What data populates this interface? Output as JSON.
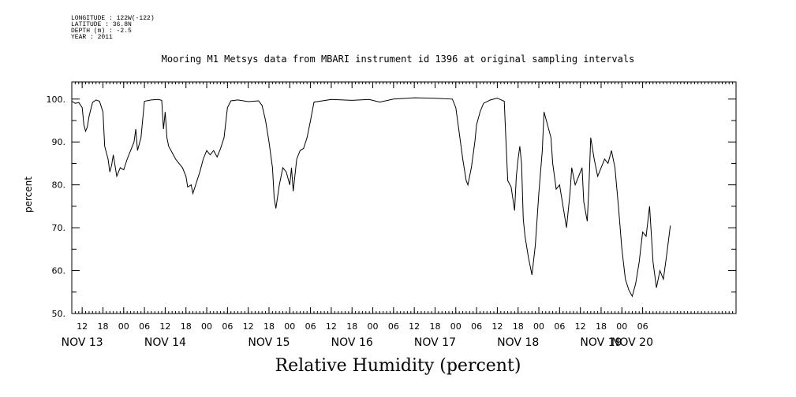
{
  "metadata": {
    "longitude": "LONGITUDE : 122W(-122)",
    "latitude": "LATITUDE : 36.8N",
    "depth": "DEPTH (m) : -2.5",
    "year": "YEAR : 2011"
  },
  "chart_data": {
    "type": "line",
    "title": "Mooring M1 Metsys data from MBARI instrument id 1396 at original sampling intervals",
    "xlabel": "Relative Humidity (percent)",
    "ylabel": "percent",
    "ylim": [
      50,
      104
    ],
    "xlim": [
      "2011-11-12T09:00",
      "2011-11-20T09:00"
    ],
    "grid": false,
    "y_ticks": [
      50,
      60,
      70,
      80,
      90,
      100
    ],
    "y_tick_labels": [
      "50.",
      "60.",
      "70.",
      "80.",
      "90.",
      "100."
    ],
    "hour_ticks": [
      {
        "t": "2011-11-12T12:00",
        "label": "12"
      },
      {
        "t": "2011-11-12T18:00",
        "label": "18"
      },
      {
        "t": "2011-11-13T00:00",
        "label": "00"
      },
      {
        "t": "2011-11-13T06:00",
        "label": "06"
      },
      {
        "t": "2011-11-13T12:00",
        "label": "12"
      },
      {
        "t": "2011-11-13T18:00",
        "label": "18"
      },
      {
        "t": "2011-11-14T00:00",
        "label": "00"
      },
      {
        "t": "2011-11-14T06:00",
        "label": "06"
      },
      {
        "t": "2011-11-14T12:00",
        "label": "12"
      },
      {
        "t": "2011-11-14T18:00",
        "label": "18"
      },
      {
        "t": "2011-11-15T00:00",
        "label": "00"
      },
      {
        "t": "2011-11-15T06:00",
        "label": "06"
      },
      {
        "t": "2011-11-15T12:00",
        "label": "12"
      },
      {
        "t": "2011-11-15T18:00",
        "label": "18"
      },
      {
        "t": "2011-11-16T00:00",
        "label": "00"
      },
      {
        "t": "2011-11-16T06:00",
        "label": "06"
      },
      {
        "t": "2011-11-16T12:00",
        "label": "12"
      },
      {
        "t": "2011-11-16T18:00",
        "label": "18"
      },
      {
        "t": "2011-11-17T00:00",
        "label": "00"
      },
      {
        "t": "2011-11-17T06:00",
        "label": "06"
      },
      {
        "t": "2011-11-17T12:00",
        "label": "12"
      },
      {
        "t": "2011-11-17T18:00",
        "label": "18"
      },
      {
        "t": "2011-11-18T00:00",
        "label": "00"
      },
      {
        "t": "2011-11-18T06:00",
        "label": "06"
      },
      {
        "t": "2011-11-18T12:00",
        "label": "12"
      },
      {
        "t": "2011-11-18T18:00",
        "label": "18"
      },
      {
        "t": "2011-11-19T00:00",
        "label": "00"
      },
      {
        "t": "2011-11-19T06:00",
        "label": "06"
      }
    ],
    "day_labels": [
      {
        "t": "2011-11-12T12:00",
        "label": "NOV 13"
      },
      {
        "t": "2011-11-13T12:00",
        "label": "NOV 14"
      },
      {
        "t": "2011-11-14T18:00",
        "label": "NOV 15"
      },
      {
        "t": "2011-11-15T18:00",
        "label": "NOV 16"
      },
      {
        "t": "2011-11-16T18:00",
        "label": "NOV 17"
      },
      {
        "t": "2011-11-17T18:00",
        "label": "NOV 18"
      },
      {
        "t": "2011-11-18T18:00",
        "label": "NOV 19"
      },
      {
        "t": "2011-11-19T03:00",
        "label": "NOV 20"
      }
    ],
    "series": [
      {
        "points": [
          [
            "2011-11-12T09:00",
            99.5
          ],
          [
            "2011-11-12T10:00",
            99.0
          ],
          [
            "2011-11-12T11:00",
            99.2
          ],
          [
            "2011-11-12T12:00",
            98.0
          ],
          [
            "2011-11-12T12:30",
            94.0
          ],
          [
            "2011-11-12T13:00",
            92.5
          ],
          [
            "2011-11-12T13:30",
            93.5
          ],
          [
            "2011-11-12T14:00",
            96.0
          ],
          [
            "2011-11-12T15:00",
            99.2
          ],
          [
            "2011-11-12T16:00",
            99.8
          ],
          [
            "2011-11-12T17:00",
            99.5
          ],
          [
            "2011-11-12T18:00",
            97.0
          ],
          [
            "2011-11-12T18:30",
            89.0
          ],
          [
            "2011-11-12T19:30",
            86.0
          ],
          [
            "2011-11-12T20:00",
            83.0
          ],
          [
            "2011-11-12T20:30",
            84.5
          ],
          [
            "2011-11-12T21:00",
            87.0
          ],
          [
            "2011-11-12T22:00",
            82.0
          ],
          [
            "2011-11-12T23:00",
            84.0
          ],
          [
            "2011-11-13T00:00",
            83.5
          ],
          [
            "2011-11-13T01:00",
            86.0
          ],
          [
            "2011-11-13T02:00",
            88.0
          ],
          [
            "2011-11-13T03:00",
            90.0
          ],
          [
            "2011-11-13T03:30",
            93.0
          ],
          [
            "2011-11-13T04:00",
            88.0
          ],
          [
            "2011-11-13T05:00",
            91.0
          ],
          [
            "2011-11-13T06:00",
            99.5
          ],
          [
            "2011-11-13T08:00",
            99.8
          ],
          [
            "2011-11-13T10:00",
            99.9
          ],
          [
            "2011-11-13T11:00",
            99.7
          ],
          [
            "2011-11-13T11:30",
            93.0
          ],
          [
            "2011-11-13T12:00",
            97.0
          ],
          [
            "2011-11-13T12:30",
            91.0
          ],
          [
            "2011-11-13T13:00",
            89.0
          ],
          [
            "2011-11-13T14:00",
            87.5
          ],
          [
            "2011-11-13T15:00",
            86.0
          ],
          [
            "2011-11-13T16:00",
            85.0
          ],
          [
            "2011-11-13T17:00",
            84.0
          ],
          [
            "2011-11-13T18:00",
            82.0
          ],
          [
            "2011-11-13T18:30",
            79.5
          ],
          [
            "2011-11-13T19:30",
            80.0
          ],
          [
            "2011-11-13T20:00",
            78.0
          ],
          [
            "2011-11-13T21:00",
            80.5
          ],
          [
            "2011-11-13T22:00",
            83.0
          ],
          [
            "2011-11-13T23:00",
            86.0
          ],
          [
            "2011-11-14T00:00",
            88.0
          ],
          [
            "2011-11-14T01:00",
            87.0
          ],
          [
            "2011-11-14T02:00",
            88.0
          ],
          [
            "2011-11-14T03:00",
            86.5
          ],
          [
            "2011-11-14T04:00",
            88.5
          ],
          [
            "2011-11-14T05:00",
            91.0
          ],
          [
            "2011-11-14T06:00",
            98.0
          ],
          [
            "2011-11-14T07:00",
            99.6
          ],
          [
            "2011-11-14T09:00",
            99.8
          ],
          [
            "2011-11-14T12:00",
            99.4
          ],
          [
            "2011-11-14T15:00",
            99.6
          ],
          [
            "2011-11-14T16:00",
            98.5
          ],
          [
            "2011-11-14T17:00",
            95.0
          ],
          [
            "2011-11-14T18:00",
            90.0
          ],
          [
            "2011-11-14T19:00",
            84.0
          ],
          [
            "2011-11-14T19:30",
            77.0
          ],
          [
            "2011-11-14T20:00",
            74.5
          ],
          [
            "2011-11-14T21:00",
            80.0
          ],
          [
            "2011-11-14T22:00",
            84.0
          ],
          [
            "2011-11-14T23:00",
            83.0
          ],
          [
            "2011-11-15T00:00",
            80.0
          ],
          [
            "2011-11-15T00:30",
            84.0
          ],
          [
            "2011-11-15T01:00",
            78.5
          ],
          [
            "2011-11-15T02:00",
            86.0
          ],
          [
            "2011-11-15T03:00",
            88.0
          ],
          [
            "2011-11-15T04:00",
            88.5
          ],
          [
            "2011-11-15T05:00",
            91.0
          ],
          [
            "2011-11-15T06:00",
            95.0
          ],
          [
            "2011-11-15T07:00",
            99.3
          ],
          [
            "2011-11-15T12:00",
            99.9
          ],
          [
            "2011-11-15T18:00",
            99.7
          ],
          [
            "2011-11-15T23:00",
            99.9
          ],
          [
            "2011-11-16T02:00",
            99.3
          ],
          [
            "2011-11-16T06:00",
            100.0
          ],
          [
            "2011-11-16T12:00",
            100.3
          ],
          [
            "2011-11-16T18:00",
            100.2
          ],
          [
            "2011-11-16T23:00",
            100.0
          ],
          [
            "2011-11-17T00:00",
            98.0
          ],
          [
            "2011-11-17T01:00",
            92.0
          ],
          [
            "2011-11-17T02:00",
            86.0
          ],
          [
            "2011-11-17T03:00",
            81.0
          ],
          [
            "2011-11-17T03:30",
            80.0
          ],
          [
            "2011-11-17T04:30",
            84.0
          ],
          [
            "2011-11-17T05:30",
            90.0
          ],
          [
            "2011-11-17T06:00",
            94.0
          ],
          [
            "2011-11-17T07:00",
            97.0
          ],
          [
            "2011-11-17T08:00",
            99.0
          ],
          [
            "2011-11-17T10:00",
            99.8
          ],
          [
            "2011-11-17T12:00",
            100.2
          ],
          [
            "2011-11-17T14:00",
            99.5
          ],
          [
            "2011-11-17T14:30",
            90.0
          ],
          [
            "2011-11-17T15:00",
            81.0
          ],
          [
            "2011-11-17T16:00",
            79.5
          ],
          [
            "2011-11-17T17:00",
            74.0
          ],
          [
            "2011-11-17T17:30",
            82.0
          ],
          [
            "2011-11-17T18:00",
            86.0
          ],
          [
            "2011-11-17T18:30",
            89.0
          ],
          [
            "2011-11-17T19:00",
            85.0
          ],
          [
            "2011-11-17T19:30",
            72.0
          ],
          [
            "2011-11-17T20:00",
            68.0
          ],
          [
            "2011-11-17T21:00",
            63.0
          ],
          [
            "2011-11-17T22:00",
            59.0
          ],
          [
            "2011-11-17T23:00",
            66.0
          ],
          [
            "2011-11-18T00:00",
            78.0
          ],
          [
            "2011-11-18T01:00",
            88.0
          ],
          [
            "2011-11-18T01:30",
            97.0
          ],
          [
            "2011-11-18T02:30",
            94.0
          ],
          [
            "2011-11-18T03:30",
            91.0
          ],
          [
            "2011-11-18T04:00",
            85.0
          ],
          [
            "2011-11-18T05:00",
            79.0
          ],
          [
            "2011-11-18T06:00",
            80.0
          ],
          [
            "2011-11-18T07:00",
            75.0
          ],
          [
            "2011-11-18T08:00",
            70.0
          ],
          [
            "2011-11-18T09:00",
            78.0
          ],
          [
            "2011-11-18T09:30",
            84.0
          ],
          [
            "2011-11-18T10:30",
            80.0
          ],
          [
            "2011-11-18T11:30",
            82.0
          ],
          [
            "2011-11-18T12:30",
            84.0
          ],
          [
            "2011-11-18T13:00",
            76.0
          ],
          [
            "2011-11-18T14:00",
            71.5
          ],
          [
            "2011-11-18T14:30",
            80.0
          ],
          [
            "2011-11-18T15:00",
            91.0
          ],
          [
            "2011-11-18T16:00",
            86.0
          ],
          [
            "2011-11-18T17:00",
            82.0
          ],
          [
            "2011-11-18T18:00",
            84.0
          ],
          [
            "2011-11-18T19:00",
            86.0
          ],
          [
            "2011-11-18T20:00",
            85.0
          ],
          [
            "2011-11-18T21:00",
            88.0
          ],
          [
            "2011-11-18T22:00",
            84.0
          ],
          [
            "2011-11-18T23:00",
            75.0
          ],
          [
            "2011-11-19T00:00",
            65.0
          ],
          [
            "2011-11-19T01:00",
            58.0
          ],
          [
            "2011-11-19T02:00",
            55.5
          ],
          [
            "2011-11-19T03:00",
            54.0
          ],
          [
            "2011-11-19T04:00",
            57.0
          ],
          [
            "2011-11-19T05:00",
            62.0
          ],
          [
            "2011-11-19T06:00",
            69.0
          ],
          [
            "2011-11-19T07:00",
            68.0
          ],
          [
            "2011-11-19T08:00",
            75.0
          ],
          [
            "2011-11-19T09:00",
            62.0
          ],
          [
            "2011-11-19T10:00",
            56.0
          ],
          [
            "2011-11-19T11:00",
            60.0
          ],
          [
            "2011-11-19T12:00",
            58.0
          ],
          [
            "2011-11-19T13:00",
            64.0
          ],
          [
            "2011-11-19T14:00",
            70.5
          ]
        ]
      }
    ]
  }
}
